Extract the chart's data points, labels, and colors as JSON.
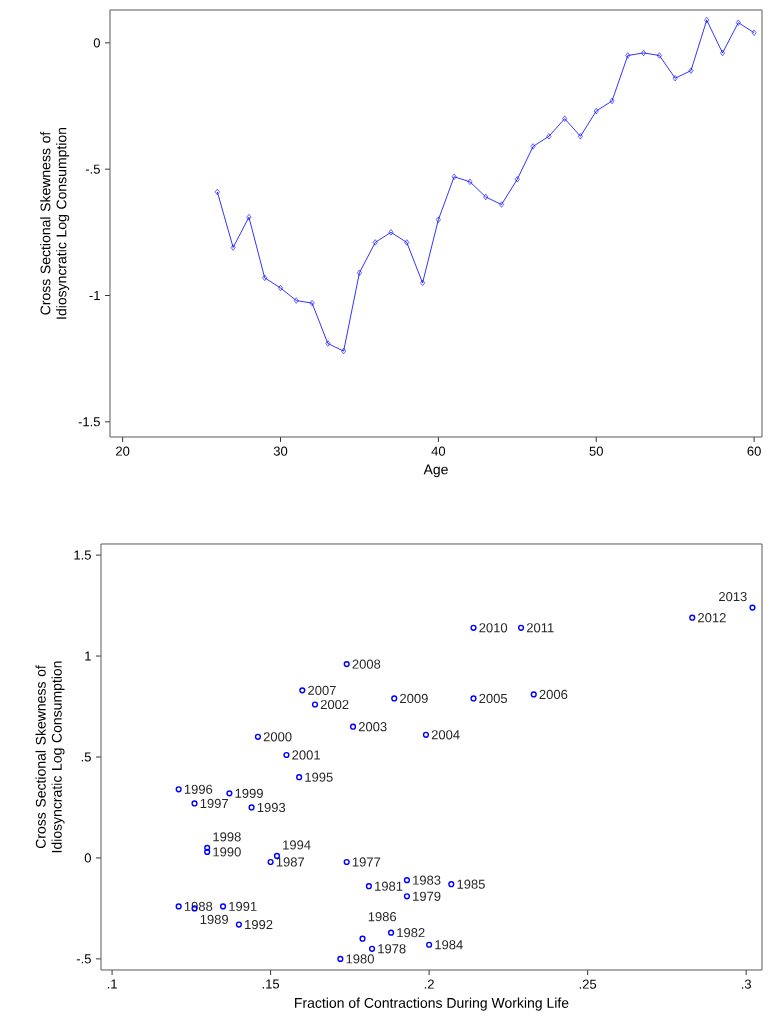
{
  "chart_data": [
    {
      "type": "line",
      "xlabel": "Age",
      "ylabel": "Cross Sectional Skewness of Idiosyncratic Log Consumption",
      "x": [
        26,
        27,
        28,
        29,
        30,
        31,
        32,
        33,
        34,
        35,
        36,
        37,
        38,
        39,
        40,
        41,
        42,
        43,
        44,
        45,
        46,
        47,
        48,
        49,
        50,
        51,
        52,
        53,
        54,
        55,
        56,
        57,
        58,
        59,
        60
      ],
      "values": [
        -0.59,
        -0.81,
        -0.69,
        -0.93,
        -0.97,
        -1.02,
        -1.03,
        -1.19,
        -1.22,
        -0.91,
        -0.79,
        -0.75,
        -0.79,
        -0.95,
        -0.7,
        -0.53,
        -0.55,
        -0.61,
        -0.64,
        -0.54,
        -0.41,
        -0.37,
        -0.3,
        -0.37,
        -0.27,
        -0.23,
        -0.05,
        -0.04,
        -0.05,
        -0.14,
        -0.11,
        0.09,
        -0.04,
        0.08,
        0.04
      ],
      "color": "#0000ff",
      "marker": "diamond",
      "line_style": "solid",
      "xlim": [
        19.2,
        60.5
      ],
      "ylim": [
        -1.56,
        0.13
      ],
      "xticks": [
        20,
        30,
        40,
        50,
        60
      ],
      "yticks": [
        {
          "value": -1.5,
          "label": "-1.5"
        },
        -1,
        {
          "value": -0.5,
          "label": "-.5"
        },
        0
      ]
    },
    {
      "type": "scatter",
      "xlabel": "Fraction of Contractions During Working Life",
      "ylabel": "Cross Sectional Skewness of Idiosyncratic Log Consumption",
      "x": [
        0.174,
        0.182,
        0.193,
        0.172,
        0.181,
        0.188,
        0.193,
        0.2,
        0.207,
        0.179,
        0.15,
        0.121,
        0.126,
        0.13,
        0.135,
        0.14,
        0.144,
        0.152,
        0.159,
        0.121,
        0.126,
        0.13,
        0.137,
        0.146,
        0.155,
        0.164,
        0.176,
        0.199,
        0.214,
        0.233,
        0.16,
        0.174,
        0.189,
        0.214,
        0.229,
        0.283,
        0.302
      ],
      "values": [
        -0.02,
        -0.45,
        -0.19,
        -0.5,
        -0.14,
        -0.37,
        -0.11,
        -0.43,
        -0.13,
        -0.4,
        -0.02,
        -0.24,
        -0.25,
        0.03,
        -0.24,
        -0.33,
        0.25,
        0.01,
        0.4,
        0.34,
        0.27,
        0.05,
        0.32,
        0.6,
        0.51,
        0.76,
        0.65,
        0.61,
        0.79,
        0.81,
        0.83,
        0.96,
        0.79,
        1.14,
        1.14,
        1.19,
        1.24
      ],
      "annotations": [
        {
          "text": "1977",
          "x": 0.174,
          "y": -0.02
        },
        {
          "text": "1978",
          "x": 0.182,
          "y": -0.45
        },
        {
          "text": "1979",
          "x": 0.193,
          "y": -0.19
        },
        {
          "text": "1980",
          "x": 0.172,
          "y": -0.5
        },
        {
          "text": "1981",
          "x": 0.181,
          "y": -0.14
        },
        {
          "text": "1982",
          "x": 0.188,
          "y": -0.37
        },
        {
          "text": "1983",
          "x": 0.193,
          "y": -0.11
        },
        {
          "text": "1984",
          "x": 0.2,
          "y": -0.43
        },
        {
          "text": "1985",
          "x": 0.207,
          "y": -0.13
        },
        {
          "text": "1986",
          "x": 0.179,
          "y": -0.4
        },
        {
          "text": "1987",
          "x": 0.15,
          "y": -0.02
        },
        {
          "text": "1988",
          "x": 0.121,
          "y": -0.24
        },
        {
          "text": "1989",
          "x": 0.126,
          "y": -0.25
        },
        {
          "text": "1990",
          "x": 0.13,
          "y": 0.03
        },
        {
          "text": "1991",
          "x": 0.135,
          "y": -0.24
        },
        {
          "text": "1992",
          "x": 0.14,
          "y": -0.33
        },
        {
          "text": "1993",
          "x": 0.144,
          "y": 0.25
        },
        {
          "text": "1994",
          "x": 0.152,
          "y": 0.01
        },
        {
          "text": "1995",
          "x": 0.159,
          "y": 0.4
        },
        {
          "text": "1996",
          "x": 0.121,
          "y": 0.34
        },
        {
          "text": "1997",
          "x": 0.126,
          "y": 0.27
        },
        {
          "text": "1998",
          "x": 0.13,
          "y": 0.05
        },
        {
          "text": "1999",
          "x": 0.137,
          "y": 0.32
        },
        {
          "text": "2000",
          "x": 0.146,
          "y": 0.6
        },
        {
          "text": "2001",
          "x": 0.155,
          "y": 0.51
        },
        {
          "text": "2002",
          "x": 0.164,
          "y": 0.76
        },
        {
          "text": "2003",
          "x": 0.176,
          "y": 0.65
        },
        {
          "text": "2004",
          "x": 0.199,
          "y": 0.61
        },
        {
          "text": "2005",
          "x": 0.214,
          "y": 0.79
        },
        {
          "text": "2006",
          "x": 0.233,
          "y": 0.81
        },
        {
          "text": "2007",
          "x": 0.16,
          "y": 0.83
        },
        {
          "text": "2008",
          "x": 0.174,
          "y": 0.96
        },
        {
          "text": "2009",
          "x": 0.189,
          "y": 0.79
        },
        {
          "text": "2010",
          "x": 0.214,
          "y": 1.14
        },
        {
          "text": "2011",
          "x": 0.229,
          "y": 1.14
        },
        {
          "text": "2012",
          "x": 0.283,
          "y": 1.19
        },
        {
          "text": "2013",
          "x": 0.302,
          "y": 1.24
        }
      ],
      "color": "#0000ff",
      "marker": "circle",
      "xlim": [
        0.0965,
        0.305
      ],
      "ylim": [
        -0.555,
        1.555
      ],
      "xticks": [
        {
          "value": 0.1,
          "label": ".1"
        },
        {
          "value": 0.15,
          "label": ".15"
        },
        {
          "value": 0.2,
          "label": ".2"
        },
        {
          "value": 0.25,
          "label": ".25"
        },
        {
          "value": 0.3,
          "label": ".3"
        }
      ],
      "yticks": [
        {
          "value": -0.5,
          "label": "-.5"
        },
        0,
        {
          "value": 0.5,
          "label": ".5"
        },
        1,
        {
          "value": 1.5,
          "label": "1.5"
        }
      ]
    }
  ]
}
